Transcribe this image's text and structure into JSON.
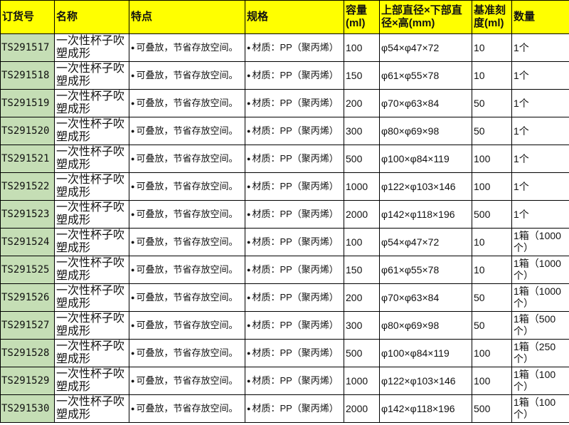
{
  "header": [
    "订货号",
    "名称",
    "特点",
    "规格",
    "容量(ml)",
    "上部直径×下部直径×高(mm)",
    "基准刻度(ml)",
    "数量"
  ],
  "rows": [
    {
      "id": "TS291517",
      "name": "一次性杯子吹塑成形",
      "feature": "可叠放，节省存放空间。",
      "spec": "材质：PP（聚丙烯）",
      "capacity": "100",
      "dims": "φ54×φ47×72",
      "scale": "10",
      "qty": "1个"
    },
    {
      "id": "TS291518",
      "name": "一次性杯子吹塑成形",
      "feature": "可叠放，节省存放空间。",
      "spec": "材质：PP（聚丙烯）",
      "capacity": "150",
      "dims": "φ61×φ55×78",
      "scale": "10",
      "qty": "1个"
    },
    {
      "id": "TS291519",
      "name": "一次性杯子吹塑成形",
      "feature": "可叠放，节省存放空间。",
      "spec": "材质：PP（聚丙烯）",
      "capacity": "200",
      "dims": "φ70×φ63×84",
      "scale": "50",
      "qty": "1个"
    },
    {
      "id": "TS291520",
      "name": "一次性杯子吹塑成形",
      "feature": "可叠放，节省存放空间。",
      "spec": "材质：PP（聚丙烯）",
      "capacity": "300",
      "dims": "φ80×φ69×98",
      "scale": "50",
      "qty": "1个"
    },
    {
      "id": "TS291521",
      "name": "一次性杯子吹塑成形",
      "feature": "可叠放，节省存放空间。",
      "spec": "材质：PP（聚丙烯）",
      "capacity": "500",
      "dims": "φ100×φ84×119",
      "scale": "100",
      "qty": "1个"
    },
    {
      "id": "TS291522",
      "name": "一次性杯子吹塑成形",
      "feature": "可叠放，节省存放空间。",
      "spec": "材质：PP（聚丙烯）",
      "capacity": "1000",
      "dims": "φ122×φ103×146",
      "scale": "100",
      "qty": "1个"
    },
    {
      "id": "TS291523",
      "name": "一次性杯子吹塑成形",
      "feature": "可叠放，节省存放空间。",
      "spec": "材质：PP（聚丙烯）",
      "capacity": "2000",
      "dims": "φ142×φ118×196",
      "scale": "500",
      "qty": "1个"
    },
    {
      "id": "TS291524",
      "name": "一次性杯子吹塑成形",
      "feature": "可叠放，节省存放空间。",
      "spec": "材质：PP（聚丙烯）",
      "capacity": "100",
      "dims": "φ54×φ47×72",
      "scale": "10",
      "qty": "1箱（1000个）"
    },
    {
      "id": "TS291525",
      "name": "一次性杯子吹塑成形",
      "feature": "可叠放，节省存放空间。",
      "spec": "材质：PP（聚丙烯）",
      "capacity": "150",
      "dims": "φ61×φ55×78",
      "scale": "10",
      "qty": "1箱（1000个）"
    },
    {
      "id": "TS291526",
      "name": "一次性杯子吹塑成形",
      "feature": "可叠放，节省存放空间。",
      "spec": "材质：PP（聚丙烯）",
      "capacity": "200",
      "dims": "φ70×φ63×84",
      "scale": "50",
      "qty": "1箱（1000个）"
    },
    {
      "id": "TS291527",
      "name": "一次性杯子吹塑成形",
      "feature": "可叠放，节省存放空间。",
      "spec": "材质：PP（聚丙烯）",
      "capacity": "300",
      "dims": "φ80×φ69×98",
      "scale": "50",
      "qty": "1箱（500个）"
    },
    {
      "id": "TS291528",
      "name": "一次性杯子吹塑成形",
      "feature": "可叠放，节省存放空间。",
      "spec": "材质：PP（聚丙烯）",
      "capacity": "500",
      "dims": "φ100×φ84×119",
      "scale": "100",
      "qty": "1箱（250个）"
    },
    {
      "id": "TS291529",
      "name": "一次性杯子吹塑成形",
      "feature": "可叠放，节省存放空间。",
      "spec": "材质：PP（聚丙烯）",
      "capacity": "1000",
      "dims": "φ122×φ103×146",
      "scale": "100",
      "qty": "1箱（100个）"
    },
    {
      "id": "TS291530",
      "name": "一次性杯子吹塑成形",
      "feature": "可叠放，节省存放空间。",
      "spec": "材质：PP（聚丙烯）",
      "capacity": "2000",
      "dims": "φ142×φ118×196",
      "scale": "500",
      "qty": "1箱（100个）"
    }
  ],
  "colors": {
    "header_bg": "#ffff00",
    "id_bg": "#c5deb5"
  }
}
